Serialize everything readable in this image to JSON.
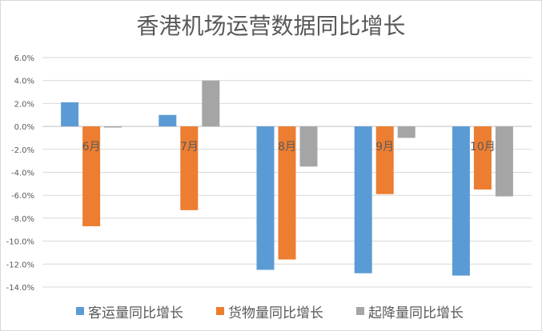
{
  "chart_data": {
    "type": "bar",
    "title": "香港机场运营数据同比增长",
    "categories": [
      "6月",
      "7月",
      "8月",
      "9月",
      "10月"
    ],
    "series": [
      {
        "name": "客运量同比增长",
        "color": "#5B9BD5",
        "values": [
          2.1,
          1.0,
          -12.5,
          -12.8,
          -13.0
        ]
      },
      {
        "name": "货物量同比增长",
        "color": "#ED7D31",
        "values": [
          -8.7,
          -7.3,
          -11.6,
          -5.9,
          -5.5
        ]
      },
      {
        "name": "起降量同比增长",
        "color": "#A5A5A5",
        "values": [
          -0.1,
          4.0,
          -3.5,
          -1.0,
          -6.1
        ]
      }
    ],
    "ylim": [
      -14,
      6
    ],
    "yticks": [
      6,
      4,
      2,
      0,
      -2,
      -4,
      -6,
      -8,
      -10,
      -12,
      -14
    ],
    "ytick_labels": [
      "6.0%",
      "4.0%",
      "2.0%",
      "0.0%",
      "-2.0%",
      "-4.0%",
      "-6.0%",
      "-8.0%",
      "-10.0%",
      "-12.0%",
      "-14.0%"
    ],
    "xlabel": "",
    "ylabel": "",
    "grid": true,
    "legend": "bottom"
  }
}
